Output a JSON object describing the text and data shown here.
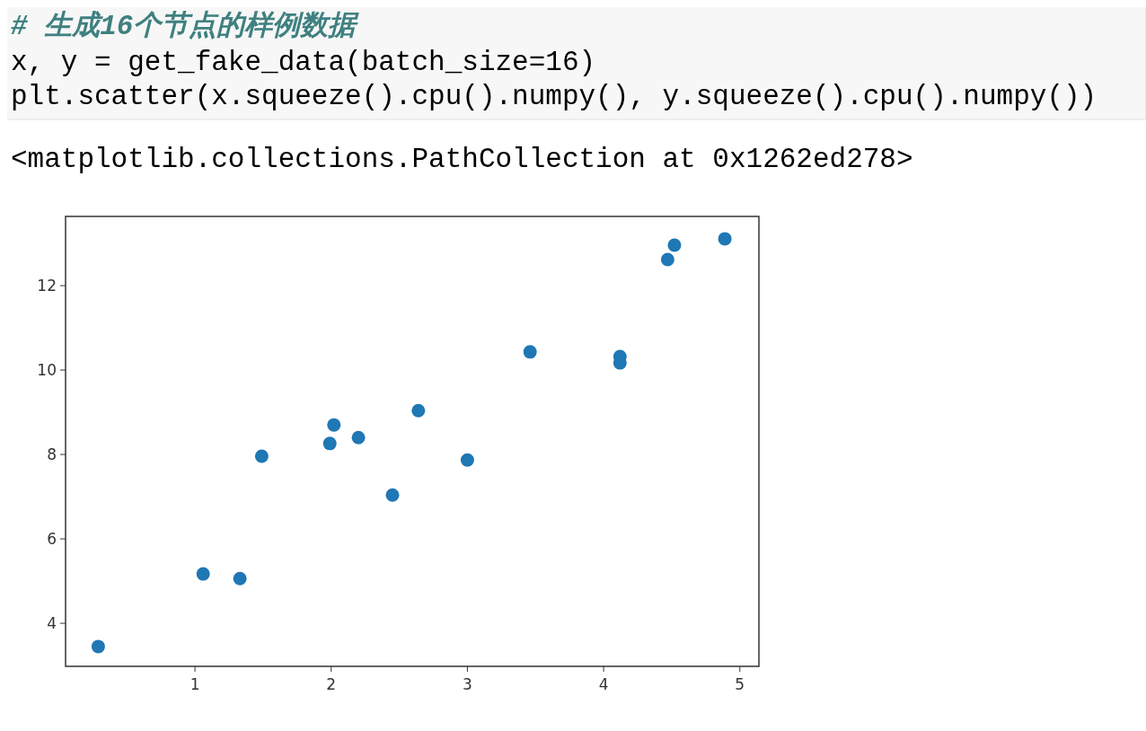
{
  "chart_data": {
    "type": "scatter",
    "annotations": [
      "# 生成16个节点的样例数据",
      "x, y = get_fake_data(batch_size=16)",
      "plt.scatter(x.squeeze().cpu().numpy(), y.squeeze().cpu().numpy())",
      "<matplotlib.collections.PathCollection at 0x1262ed278>"
    ],
    "x": [
      0.29,
      1.06,
      1.33,
      1.49,
      1.99,
      2.02,
      2.2,
      2.45,
      2.64,
      3.0,
      3.46,
      4.12,
      4.12,
      4.47,
      4.52,
      4.89
    ],
    "values": [
      3.45,
      5.17,
      5.06,
      7.96,
      8.26,
      8.7,
      8.4,
      7.04,
      9.04,
      7.87,
      10.43,
      10.32,
      10.17,
      12.62,
      12.96,
      13.11
    ],
    "color": "#1f77b4",
    "marker": "circle",
    "xlim": [
      0.05,
      5.14
    ],
    "ylim": [
      2.98,
      13.64
    ],
    "xticks": [
      1,
      2,
      3,
      4,
      5
    ],
    "yticks": [
      4,
      6,
      8,
      10,
      12
    ]
  }
}
